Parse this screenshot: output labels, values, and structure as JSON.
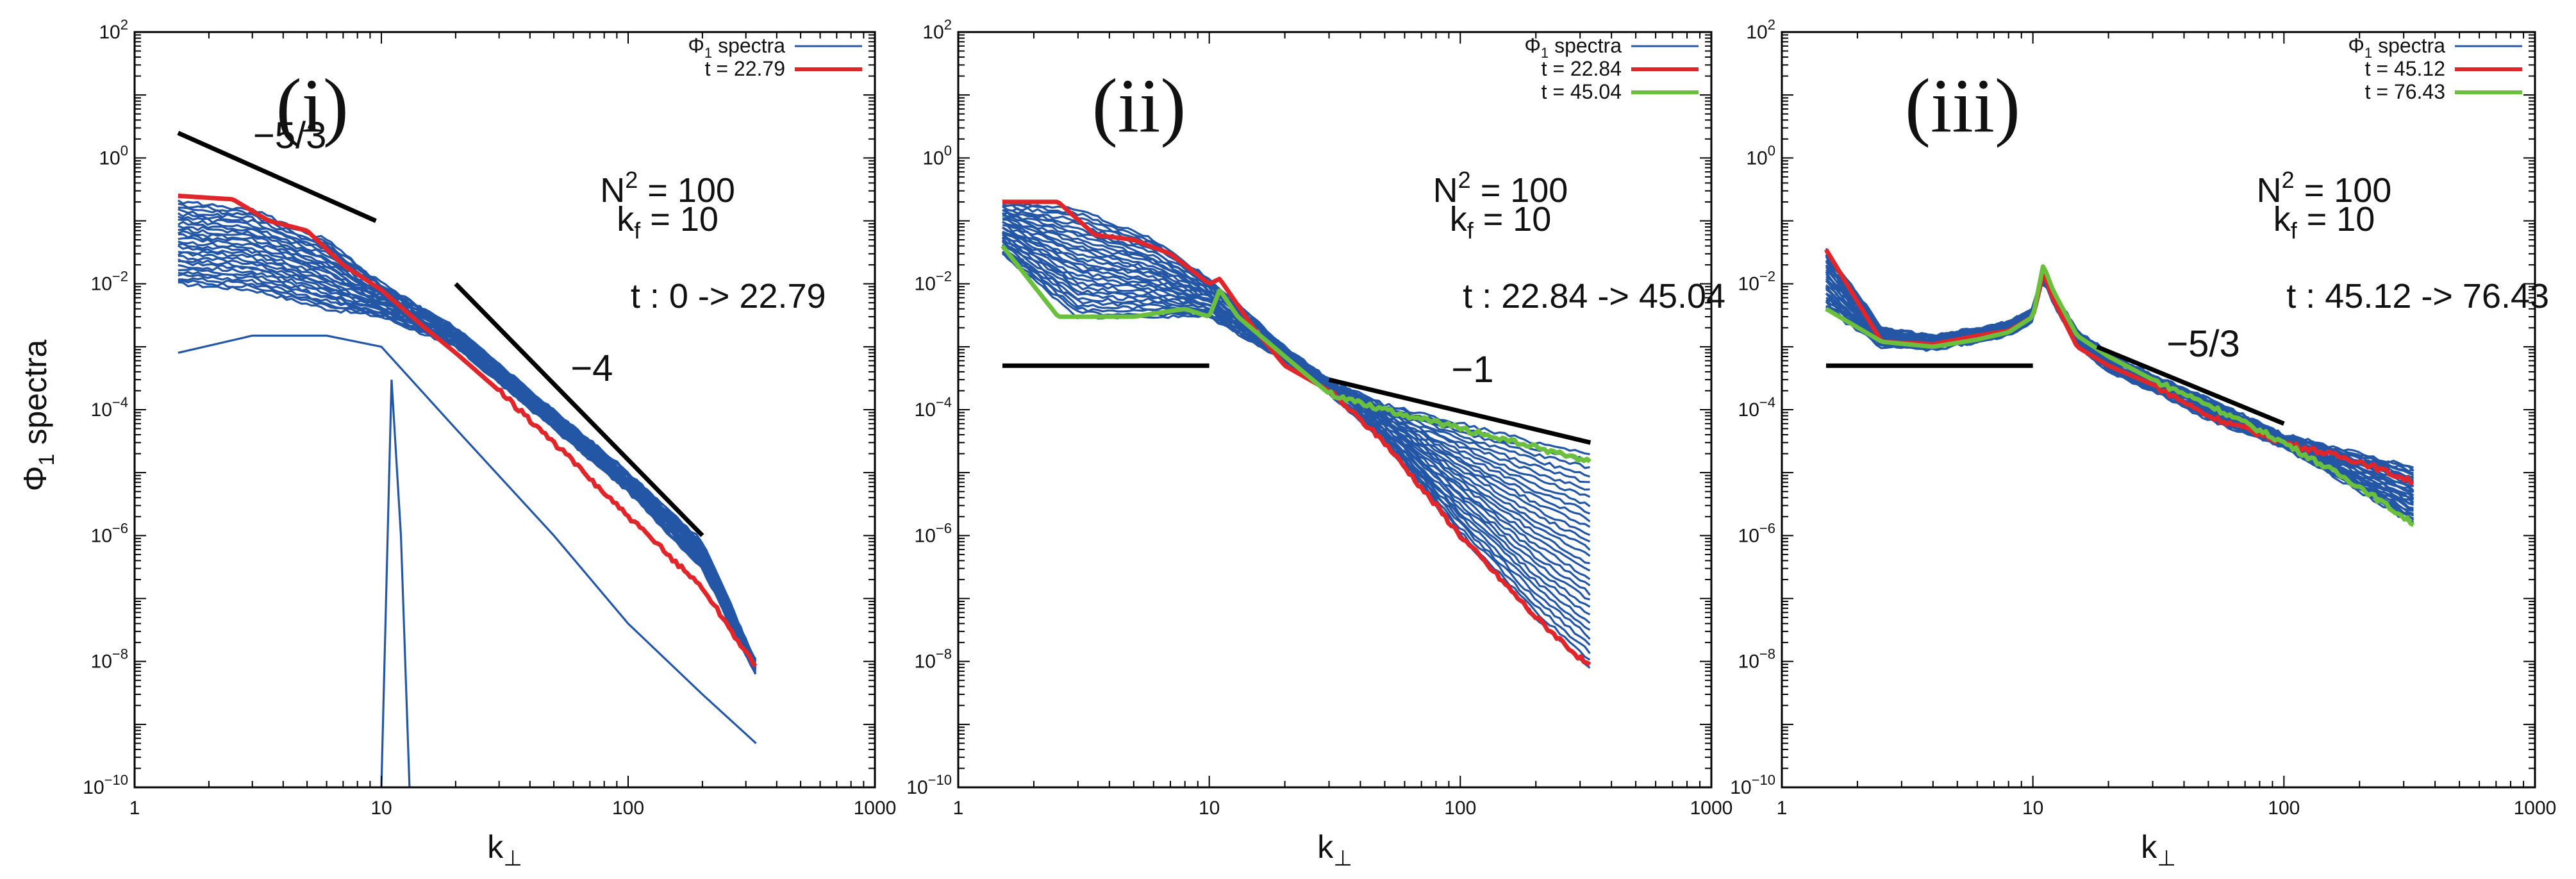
{
  "colors": {
    "spectra": "#2456a6",
    "red": "#e0262b",
    "green": "#6abf3c",
    "ref": "#000000"
  },
  "y_axis_label": {
    "base": "Φ",
    "sub": "1",
    "rest": " spectra"
  },
  "chart_data": [
    {
      "type": "line",
      "panel_label": "(i)",
      "xlabel": "k⊥",
      "xscale": "log",
      "yscale": "log",
      "xlim": [
        1,
        1000
      ],
      "ylim": [
        1e-10,
        100
      ],
      "x_ticks": [
        "1",
        "10",
        "100",
        "1000"
      ],
      "y_ticks": [
        "10^-10",
        "10^-8",
        "10^-6",
        "10^-4",
        "10^-2",
        "10^0",
        "10^2"
      ],
      "annotations": {
        "N2": "100",
        "kf": "10",
        "time": "t : 0 -> 22.79"
      },
      "legend": [
        {
          "label_base": "Φ",
          "label_sub": "1",
          "label_rest": " spectra",
          "color": "blue"
        },
        {
          "label": "t = 22.79",
          "color": "red"
        }
      ],
      "reference_lines": [
        {
          "label": "−5/3",
          "x": [
            1.5,
            9.5
          ],
          "y": [
            2.5,
            0.1
          ]
        },
        {
          "label": "−4",
          "x": [
            20,
            200
          ],
          "y": [
            0.01,
            1e-06
          ]
        }
      ],
      "highlight_series": [
        {
          "name": "t = 22.79",
          "color": "red",
          "points": [
            [
              1.5,
              0.25
            ],
            [
              2.5,
              0.22
            ],
            [
              3.5,
              0.1
            ],
            [
              5,
              0.07
            ],
            [
              7,
              0.02
            ],
            [
              10,
              0.008
            ],
            [
              15,
              0.002
            ],
            [
              20,
              0.0008
            ],
            [
              30,
              0.0002
            ],
            [
              50,
              3e-05
            ],
            [
              100,
              2e-06
            ],
            [
              200,
              1.5e-07
            ],
            [
              330,
              8e-09
            ]
          ]
        }
      ],
      "spectra_summary": {
        "count_shown": 28,
        "upper_envelope": [
          [
            1.5,
            0.2
          ],
          [
            3,
            0.15
          ],
          [
            6,
            0.05
          ],
          [
            10,
            0.01
          ],
          [
            20,
            0.002
          ],
          [
            50,
            0.0001
          ],
          [
            100,
            1e-05
          ],
          [
            200,
            8e-07
          ],
          [
            330,
            1e-08
          ]
        ],
        "lower_envelope": [
          [
            1.5,
            0.01
          ],
          [
            3,
            0.008
          ],
          [
            6,
            0.004
          ],
          [
            10,
            0.003
          ],
          [
            20,
            0.001
          ],
          [
            50,
            5e-05
          ],
          [
            100,
            5e-06
          ],
          [
            200,
            3e-07
          ],
          [
            330,
            6e-09
          ]
        ],
        "earliest_curves": [
          [
            [
              1.5,
              0.0008
            ],
            [
              3,
              0.0015
            ],
            [
              6,
              0.0015
            ],
            [
              10,
              0.001
            ],
            [
              20,
              5e-05
            ],
            [
              50,
              1e-06
            ],
            [
              100,
              4e-08
            ],
            [
              200,
              3e-09
            ],
            [
              330,
              5e-10
            ]
          ],
          [
            [
              10,
              1e-10
            ],
            [
              11,
              0.0003
            ],
            [
              12,
              1e-06
            ],
            [
              13,
              1e-10
            ]
          ]
        ]
      }
    },
    {
      "type": "line",
      "panel_label": "(ii)",
      "xlabel": "k⊥",
      "xscale": "log",
      "yscale": "log",
      "xlim": [
        1,
        1000
      ],
      "ylim": [
        1e-10,
        100
      ],
      "x_ticks": [
        "1",
        "10",
        "100",
        "1000"
      ],
      "y_ticks": [
        "10^-10",
        "10^-8",
        "10^-6",
        "10^-4",
        "10^-2",
        "10^0",
        "10^2"
      ],
      "annotations": {
        "N2": "100",
        "kf": "10",
        "time": "t : 22.84 -> 45.04"
      },
      "legend": [
        {
          "label_base": "Φ",
          "label_sub": "1",
          "label_rest": " spectra",
          "color": "blue"
        },
        {
          "label": "t = 22.84",
          "color": "red"
        },
        {
          "label": "t = 45.04",
          "color": "green"
        }
      ],
      "reference_lines": [
        {
          "label": "",
          "x": [
            1.5,
            10
          ],
          "y": [
            0.0005,
            0.0005
          ]
        },
        {
          "label": "−1",
          "x": [
            30,
            330
          ],
          "y": [
            0.0003,
            3e-05
          ]
        }
      ],
      "highlight_series": [
        {
          "name": "t = 22.84",
          "color": "red",
          "points": [
            [
              1.5,
              0.2
            ],
            [
              2.5,
              0.2
            ],
            [
              3.5,
              0.06
            ],
            [
              5,
              0.05
            ],
            [
              7,
              0.03
            ],
            [
              10,
              0.01
            ],
            [
              11,
              0.012
            ],
            [
              15,
              0.002
            ],
            [
              20,
              0.0005
            ],
            [
              30,
              0.0002
            ],
            [
              50,
              3e-05
            ],
            [
              100,
              1e-06
            ],
            [
              200,
              5e-08
            ],
            [
              330,
              8e-09
            ]
          ]
        },
        {
          "name": "t = 45.04",
          "color": "green",
          "points": [
            [
              1.5,
              0.04
            ],
            [
              2.5,
              0.003
            ],
            [
              5,
              0.003
            ],
            [
              8,
              0.004
            ],
            [
              10,
              0.003
            ],
            [
              11,
              0.008
            ],
            [
              13,
              0.003
            ],
            [
              20,
              0.0007
            ],
            [
              30,
              0.00018
            ],
            [
              50,
              0.0001
            ],
            [
              100,
              5e-05
            ],
            [
              200,
              2.5e-05
            ],
            [
              330,
              1.5e-05
            ]
          ]
        }
      ],
      "spectra_summary": {
        "count_shown": 30,
        "upper_envelope": [
          [
            1.5,
            0.2
          ],
          [
            3,
            0.15
          ],
          [
            6,
            0.05
          ],
          [
            10,
            0.012
          ],
          [
            20,
            0.001
          ],
          [
            30,
            0.0003
          ],
          [
            50,
            0.00012
          ],
          [
            100,
            6e-05
          ],
          [
            200,
            3e-05
          ],
          [
            330,
            2e-05
          ]
        ],
        "lower_envelope": [
          [
            1.5,
            0.03
          ],
          [
            3,
            0.003
          ],
          [
            6,
            0.003
          ],
          [
            10,
            0.003
          ],
          [
            20,
            0.0006
          ],
          [
            30,
            0.00018
          ],
          [
            50,
            3e-05
          ],
          [
            100,
            1e-06
          ],
          [
            200,
            5e-08
          ],
          [
            330,
            8e-09
          ]
        ]
      }
    },
    {
      "type": "line",
      "panel_label": "(iii)",
      "xlabel": "k⊥",
      "xscale": "log",
      "yscale": "log",
      "xlim": [
        1,
        1000
      ],
      "ylim": [
        1e-10,
        100
      ],
      "x_ticks": [
        "1",
        "10",
        "100",
        "1000"
      ],
      "y_ticks": [
        "10^-10",
        "10^-8",
        "10^-6",
        "10^-4",
        "10^-2",
        "10^0",
        "10^2"
      ],
      "annotations": {
        "N2": "100",
        "kf": "10",
        "time": "t : 45.12 -> 76.43"
      },
      "legend": [
        {
          "label_base": "Φ",
          "label_sub": "1",
          "label_rest": " spectra",
          "color": "blue"
        },
        {
          "label": "t = 45.12",
          "color": "red"
        },
        {
          "label": "t = 76.43",
          "color": "green"
        }
      ],
      "reference_lines": [
        {
          "label": "",
          "x": [
            1.5,
            10
          ],
          "y": [
            0.0005,
            0.0005
          ]
        },
        {
          "label": "−5/3",
          "x": [
            18,
            100
          ],
          "y": [
            0.001,
            6e-05
          ]
        }
      ],
      "highlight_series": [
        {
          "name": "t = 45.12",
          "color": "red",
          "points": [
            [
              1.5,
              0.035
            ],
            [
              2.5,
              0.0012
            ],
            [
              4,
              0.0011
            ],
            [
              6,
              0.0015
            ],
            [
              8,
              0.0018
            ],
            [
              10,
              0.003
            ],
            [
              11,
              0.015
            ],
            [
              12,
              0.006
            ],
            [
              15,
              0.001
            ],
            [
              20,
              0.0005
            ],
            [
              30,
              0.00025
            ],
            [
              50,
              8e-05
            ],
            [
              100,
              3e-05
            ],
            [
              200,
              1.5e-05
            ],
            [
              330,
              7e-06
            ]
          ]
        },
        {
          "name": "t = 76.43",
          "color": "green",
          "points": [
            [
              1.5,
              0.004
            ],
            [
              2.5,
              0.0012
            ],
            [
              4,
              0.001
            ],
            [
              6,
              0.0013
            ],
            [
              8,
              0.0017
            ],
            [
              10,
              0.003
            ],
            [
              11,
              0.02
            ],
            [
              12,
              0.008
            ],
            [
              15,
              0.0015
            ],
            [
              20,
              0.0007
            ],
            [
              30,
              0.0003
            ],
            [
              50,
              0.00012
            ],
            [
              100,
              3e-05
            ],
            [
              200,
              6e-06
            ],
            [
              330,
              1.5e-06
            ]
          ]
        }
      ],
      "spectra_summary": {
        "count_shown": 30,
        "upper_envelope": [
          [
            1.5,
            0.035
          ],
          [
            2.5,
            0.002
          ],
          [
            4,
            0.0015
          ],
          [
            6,
            0.002
          ],
          [
            8,
            0.0025
          ],
          [
            10,
            0.004
          ],
          [
            11,
            0.02
          ],
          [
            12,
            0.008
          ],
          [
            15,
            0.0018
          ],
          [
            20,
            0.0008
          ],
          [
            30,
            0.00035
          ],
          [
            50,
            0.00015
          ],
          [
            100,
            4e-05
          ],
          [
            200,
            2e-05
          ],
          [
            330,
            1.2e-05
          ]
        ],
        "lower_envelope": [
          [
            1.5,
            0.004
          ],
          [
            2.5,
            0.001
          ],
          [
            4,
            0.0009
          ],
          [
            6,
            0.0012
          ],
          [
            8,
            0.0015
          ],
          [
            10,
            0.0025
          ],
          [
            11,
            0.012
          ],
          [
            12,
            0.005
          ],
          [
            15,
            0.001
          ],
          [
            20,
            0.0004
          ],
          [
            30,
            0.0002
          ],
          [
            50,
            7e-05
          ],
          [
            100,
            2.5e-05
          ],
          [
            200,
            5e-06
          ],
          [
            330,
            1.5e-06
          ]
        ]
      }
    }
  ]
}
